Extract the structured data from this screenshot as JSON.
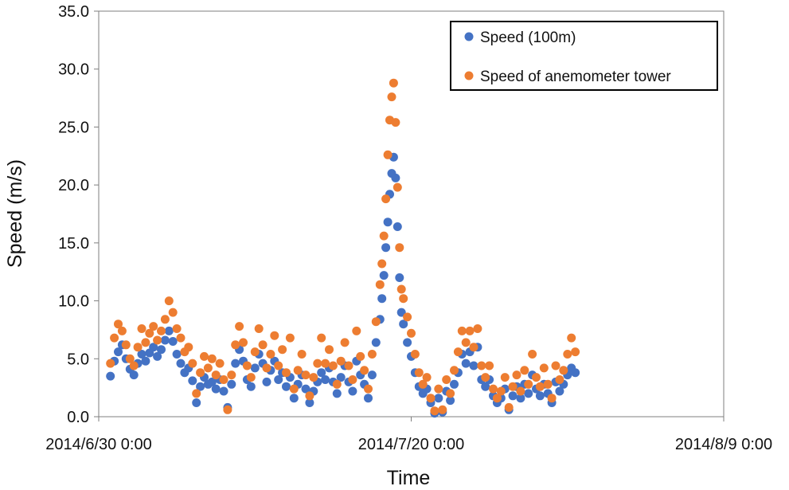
{
  "chart_data": {
    "type": "scatter",
    "xlabel": "Time",
    "ylabel": "Speed (m/s)",
    "x_ticks": [
      "2014/6/30 0:00",
      "2014/7/20 0:00",
      "2014/8/9 0:00"
    ],
    "x_range": [
      "2014-06-30 00:00",
      "2014-08-09 00:00"
    ],
    "y_ticks": [
      "0.0",
      "5.0",
      "10.0",
      "15.0",
      "20.0",
      "25.0",
      "30.0",
      "35.0"
    ],
    "ylim": [
      0,
      35
    ],
    "grid": false,
    "legend_position": "top-right",
    "series": [
      {
        "name": "Speed (100m)",
        "color": "#4472C4",
        "points": [
          [
            "2014-06-30 18:00",
            3.5
          ],
          [
            "2014-07-01 00:00",
            4.8
          ],
          [
            "2014-07-01 06:00",
            5.6
          ],
          [
            "2014-07-01 12:00",
            6.2
          ],
          [
            "2014-07-01 18:00",
            5.0
          ],
          [
            "2014-07-02 00:00",
            4.1
          ],
          [
            "2014-07-02 06:00",
            3.6
          ],
          [
            "2014-07-02 12:00",
            4.6
          ],
          [
            "2014-07-02 18:00",
            5.4
          ],
          [
            "2014-07-03 00:00",
            4.8
          ],
          [
            "2014-07-03 06:00",
            5.5
          ],
          [
            "2014-07-03 12:00",
            6.0
          ],
          [
            "2014-07-03 18:00",
            5.2
          ],
          [
            "2014-07-04 00:00",
            5.8
          ],
          [
            "2014-07-04 06:00",
            6.6
          ],
          [
            "2014-07-04 12:00",
            7.4
          ],
          [
            "2014-07-04 18:00",
            6.5
          ],
          [
            "2014-07-05 00:00",
            5.4
          ],
          [
            "2014-07-05 06:00",
            4.6
          ],
          [
            "2014-07-05 12:00",
            3.8
          ],
          [
            "2014-07-05 18:00",
            4.2
          ],
          [
            "2014-07-06 00:00",
            3.1
          ],
          [
            "2014-07-06 06:00",
            1.2
          ],
          [
            "2014-07-06 12:00",
            2.6
          ],
          [
            "2014-07-06 18:00",
            3.4
          ],
          [
            "2014-07-07 00:00",
            2.8
          ],
          [
            "2014-07-07 06:00",
            3.0
          ],
          [
            "2014-07-07 12:00",
            2.4
          ],
          [
            "2014-07-07 18:00",
            3.2
          ],
          [
            "2014-07-08 00:00",
            2.2
          ],
          [
            "2014-07-08 06:00",
            0.8
          ],
          [
            "2014-07-08 12:00",
            2.8
          ],
          [
            "2014-07-08 18:00",
            4.6
          ],
          [
            "2014-07-09 00:00",
            5.8
          ],
          [
            "2014-07-09 06:00",
            4.8
          ],
          [
            "2014-07-09 12:00",
            3.2
          ],
          [
            "2014-07-09 18:00",
            2.6
          ],
          [
            "2014-07-10 00:00",
            4.2
          ],
          [
            "2014-07-10 06:00",
            5.4
          ],
          [
            "2014-07-10 12:00",
            4.6
          ],
          [
            "2014-07-10 18:00",
            3.0
          ],
          [
            "2014-07-11 00:00",
            4.0
          ],
          [
            "2014-07-11 06:00",
            4.8
          ],
          [
            "2014-07-11 12:00",
            3.2
          ],
          [
            "2014-07-11 18:00",
            3.8
          ],
          [
            "2014-07-12 00:00",
            2.6
          ],
          [
            "2014-07-12 06:00",
            3.4
          ],
          [
            "2014-07-12 12:00",
            1.6
          ],
          [
            "2014-07-12 18:00",
            2.8
          ],
          [
            "2014-07-13 00:00",
            3.6
          ],
          [
            "2014-07-13 06:00",
            2.4
          ],
          [
            "2014-07-13 12:00",
            1.2
          ],
          [
            "2014-07-13 18:00",
            2.2
          ],
          [
            "2014-07-14 00:00",
            3.0
          ],
          [
            "2014-07-14 06:00",
            3.8
          ],
          [
            "2014-07-14 12:00",
            3.2
          ],
          [
            "2014-07-14 18:00",
            4.2
          ],
          [
            "2014-07-15 00:00",
            3.0
          ],
          [
            "2014-07-15 06:00",
            2.0
          ],
          [
            "2014-07-15 12:00",
            3.4
          ],
          [
            "2014-07-15 18:00",
            4.4
          ],
          [
            "2014-07-16 00:00",
            3.0
          ],
          [
            "2014-07-16 06:00",
            2.2
          ],
          [
            "2014-07-16 12:00",
            4.8
          ],
          [
            "2014-07-16 18:00",
            3.6
          ],
          [
            "2014-07-17 00:00",
            2.8
          ],
          [
            "2014-07-17 06:00",
            1.6
          ],
          [
            "2014-07-17 12:00",
            3.6
          ],
          [
            "2014-07-17 18:00",
            6.4
          ],
          [
            "2014-07-18 00:00",
            8.4
          ],
          [
            "2014-07-18 03:00",
            10.2
          ],
          [
            "2014-07-18 06:00",
            12.2
          ],
          [
            "2014-07-18 09:00",
            14.6
          ],
          [
            "2014-07-18 12:00",
            16.8
          ],
          [
            "2014-07-18 15:00",
            19.2
          ],
          [
            "2014-07-18 18:00",
            21.0
          ],
          [
            "2014-07-18 21:00",
            22.4
          ],
          [
            "2014-07-19 00:00",
            20.6
          ],
          [
            "2014-07-19 03:00",
            16.4
          ],
          [
            "2014-07-19 06:00",
            12.0
          ],
          [
            "2014-07-19 09:00",
            9.0
          ],
          [
            "2014-07-19 12:00",
            8.0
          ],
          [
            "2014-07-19 18:00",
            6.4
          ],
          [
            "2014-07-20 00:00",
            5.2
          ],
          [
            "2014-07-20 06:00",
            3.8
          ],
          [
            "2014-07-20 12:00",
            2.6
          ],
          [
            "2014-07-20 18:00",
            2.0
          ],
          [
            "2014-07-21 00:00",
            2.4
          ],
          [
            "2014-07-21 06:00",
            1.2
          ],
          [
            "2014-07-21 12:00",
            0.3
          ],
          [
            "2014-07-21 18:00",
            1.6
          ],
          [
            "2014-07-22 00:00",
            0.4
          ],
          [
            "2014-07-22 06:00",
            2.2
          ],
          [
            "2014-07-22 12:00",
            1.4
          ],
          [
            "2014-07-22 18:00",
            2.8
          ],
          [
            "2014-07-23 00:00",
            3.8
          ],
          [
            "2014-07-23 06:00",
            5.4
          ],
          [
            "2014-07-23 12:00",
            4.6
          ],
          [
            "2014-07-23 18:00",
            5.6
          ],
          [
            "2014-07-24 00:00",
            4.4
          ],
          [
            "2014-07-24 06:00",
            6.0
          ],
          [
            "2014-07-24 12:00",
            3.2
          ],
          [
            "2014-07-24 18:00",
            2.6
          ],
          [
            "2014-07-25 00:00",
            3.2
          ],
          [
            "2014-07-25 06:00",
            1.8
          ],
          [
            "2014-07-25 12:00",
            1.2
          ],
          [
            "2014-07-25 18:00",
            1.6
          ],
          [
            "2014-07-26 00:00",
            2.4
          ],
          [
            "2014-07-26 06:00",
            0.6
          ],
          [
            "2014-07-26 12:00",
            1.8
          ],
          [
            "2014-07-26 18:00",
            2.6
          ],
          [
            "2014-07-27 00:00",
            1.6
          ],
          [
            "2014-07-27 06:00",
            2.8
          ],
          [
            "2014-07-27 12:00",
            2.0
          ],
          [
            "2014-07-27 18:00",
            3.6
          ],
          [
            "2014-07-28 00:00",
            2.4
          ],
          [
            "2014-07-28 06:00",
            1.8
          ],
          [
            "2014-07-28 12:00",
            2.8
          ],
          [
            "2014-07-28 18:00",
            2.0
          ],
          [
            "2014-07-29 00:00",
            1.2
          ],
          [
            "2014-07-29 06:00",
            3.0
          ],
          [
            "2014-07-29 12:00",
            2.2
          ],
          [
            "2014-07-29 18:00",
            2.8
          ],
          [
            "2014-07-30 00:00",
            3.6
          ],
          [
            "2014-07-30 06:00",
            4.2
          ],
          [
            "2014-07-30 12:00",
            3.8
          ]
        ]
      },
      {
        "name": "Speed of anemometer tower",
        "color": "#ED7D31",
        "points": [
          [
            "2014-06-30 18:00",
            4.6
          ],
          [
            "2014-07-01 00:00",
            6.8
          ],
          [
            "2014-07-01 06:00",
            8.0
          ],
          [
            "2014-07-01 12:00",
            7.4
          ],
          [
            "2014-07-01 18:00",
            6.2
          ],
          [
            "2014-07-02 00:00",
            5.0
          ],
          [
            "2014-07-02 06:00",
            4.4
          ],
          [
            "2014-07-02 12:00",
            6.0
          ],
          [
            "2014-07-02 18:00",
            7.6
          ],
          [
            "2014-07-03 00:00",
            6.4
          ],
          [
            "2014-07-03 06:00",
            7.2
          ],
          [
            "2014-07-03 12:00",
            7.8
          ],
          [
            "2014-07-03 18:00",
            6.6
          ],
          [
            "2014-07-04 00:00",
            7.4
          ],
          [
            "2014-07-04 06:00",
            8.4
          ],
          [
            "2014-07-04 12:00",
            10.0
          ],
          [
            "2014-07-04 18:00",
            9.0
          ],
          [
            "2014-07-05 00:00",
            7.6
          ],
          [
            "2014-07-05 06:00",
            6.8
          ],
          [
            "2014-07-05 12:00",
            5.6
          ],
          [
            "2014-07-05 18:00",
            6.0
          ],
          [
            "2014-07-06 00:00",
            4.6
          ],
          [
            "2014-07-06 06:00",
            2.0
          ],
          [
            "2014-07-06 12:00",
            3.8
          ],
          [
            "2014-07-06 18:00",
            5.2
          ],
          [
            "2014-07-07 00:00",
            4.2
          ],
          [
            "2014-07-07 06:00",
            5.0
          ],
          [
            "2014-07-07 12:00",
            3.6
          ],
          [
            "2014-07-07 18:00",
            4.6
          ],
          [
            "2014-07-08 00:00",
            3.2
          ],
          [
            "2014-07-08 06:00",
            0.6
          ],
          [
            "2014-07-08 12:00",
            3.6
          ],
          [
            "2014-07-08 18:00",
            6.2
          ],
          [
            "2014-07-09 00:00",
            7.8
          ],
          [
            "2014-07-09 06:00",
            6.4
          ],
          [
            "2014-07-09 12:00",
            4.4
          ],
          [
            "2014-07-09 18:00",
            3.4
          ],
          [
            "2014-07-10 00:00",
            5.6
          ],
          [
            "2014-07-10 06:00",
            7.6
          ],
          [
            "2014-07-10 12:00",
            6.2
          ],
          [
            "2014-07-10 18:00",
            4.2
          ],
          [
            "2014-07-11 00:00",
            5.4
          ],
          [
            "2014-07-11 06:00",
            7.0
          ],
          [
            "2014-07-11 12:00",
            4.4
          ],
          [
            "2014-07-11 18:00",
            5.8
          ],
          [
            "2014-07-12 00:00",
            3.8
          ],
          [
            "2014-07-12 06:00",
            6.8
          ],
          [
            "2014-07-12 12:00",
            2.4
          ],
          [
            "2014-07-12 18:00",
            4.0
          ],
          [
            "2014-07-13 00:00",
            5.4
          ],
          [
            "2014-07-13 06:00",
            3.6
          ],
          [
            "2014-07-13 12:00",
            1.8
          ],
          [
            "2014-07-13 18:00",
            3.4
          ],
          [
            "2014-07-14 00:00",
            4.6
          ],
          [
            "2014-07-14 06:00",
            6.8
          ],
          [
            "2014-07-14 12:00",
            4.6
          ],
          [
            "2014-07-14 18:00",
            5.8
          ],
          [
            "2014-07-15 00:00",
            4.4
          ],
          [
            "2014-07-15 06:00",
            2.8
          ],
          [
            "2014-07-15 12:00",
            4.8
          ],
          [
            "2014-07-15 18:00",
            6.4
          ],
          [
            "2014-07-16 00:00",
            4.4
          ],
          [
            "2014-07-16 06:00",
            3.2
          ],
          [
            "2014-07-16 12:00",
            7.4
          ],
          [
            "2014-07-16 18:00",
            5.2
          ],
          [
            "2014-07-17 00:00",
            4.0
          ],
          [
            "2014-07-17 06:00",
            2.4
          ],
          [
            "2014-07-17 12:00",
            5.4
          ],
          [
            "2014-07-17 18:00",
            8.2
          ],
          [
            "2014-07-18 00:00",
            11.4
          ],
          [
            "2014-07-18 03:00",
            13.2
          ],
          [
            "2014-07-18 06:00",
            15.6
          ],
          [
            "2014-07-18 09:00",
            18.8
          ],
          [
            "2014-07-18 12:00",
            22.6
          ],
          [
            "2014-07-18 15:00",
            25.6
          ],
          [
            "2014-07-18 18:00",
            27.6
          ],
          [
            "2014-07-18 21:00",
            28.8
          ],
          [
            "2014-07-19 00:00",
            25.4
          ],
          [
            "2014-07-19 03:00",
            19.8
          ],
          [
            "2014-07-19 06:00",
            14.6
          ],
          [
            "2014-07-19 09:00",
            11.0
          ],
          [
            "2014-07-19 12:00",
            10.2
          ],
          [
            "2014-07-19 18:00",
            8.6
          ],
          [
            "2014-07-20 00:00",
            7.2
          ],
          [
            "2014-07-20 06:00",
            5.4
          ],
          [
            "2014-07-20 12:00",
            3.8
          ],
          [
            "2014-07-20 18:00",
            2.8
          ],
          [
            "2014-07-21 00:00",
            3.4
          ],
          [
            "2014-07-21 06:00",
            1.6
          ],
          [
            "2014-07-21 12:00",
            0.5
          ],
          [
            "2014-07-21 18:00",
            2.4
          ],
          [
            "2014-07-22 00:00",
            0.6
          ],
          [
            "2014-07-22 06:00",
            3.2
          ],
          [
            "2014-07-22 12:00",
            2.0
          ],
          [
            "2014-07-22 18:00",
            4.0
          ],
          [
            "2014-07-23 00:00",
            5.6
          ],
          [
            "2014-07-23 06:00",
            7.4
          ],
          [
            "2014-07-23 12:00",
            6.4
          ],
          [
            "2014-07-23 18:00",
            7.4
          ],
          [
            "2014-07-24 00:00",
            6.0
          ],
          [
            "2014-07-24 06:00",
            7.6
          ],
          [
            "2014-07-24 12:00",
            4.4
          ],
          [
            "2014-07-24 18:00",
            3.4
          ],
          [
            "2014-07-25 00:00",
            4.4
          ],
          [
            "2014-07-25 06:00",
            2.4
          ],
          [
            "2014-07-25 12:00",
            1.6
          ],
          [
            "2014-07-25 18:00",
            2.2
          ],
          [
            "2014-07-26 00:00",
            3.4
          ],
          [
            "2014-07-26 06:00",
            0.8
          ],
          [
            "2014-07-26 12:00",
            2.6
          ],
          [
            "2014-07-26 18:00",
            3.6
          ],
          [
            "2014-07-27 00:00",
            2.2
          ],
          [
            "2014-07-27 06:00",
            4.0
          ],
          [
            "2014-07-27 12:00",
            2.8
          ],
          [
            "2014-07-27 18:00",
            5.4
          ],
          [
            "2014-07-28 00:00",
            3.4
          ],
          [
            "2014-07-28 06:00",
            2.6
          ],
          [
            "2014-07-28 12:00",
            4.2
          ],
          [
            "2014-07-28 18:00",
            2.8
          ],
          [
            "2014-07-29 00:00",
            1.6
          ],
          [
            "2014-07-29 06:00",
            4.4
          ],
          [
            "2014-07-29 12:00",
            3.2
          ],
          [
            "2014-07-29 18:00",
            4.0
          ],
          [
            "2014-07-30 00:00",
            5.4
          ],
          [
            "2014-07-30 06:00",
            6.8
          ],
          [
            "2014-07-30 12:00",
            5.6
          ]
        ]
      }
    ]
  }
}
